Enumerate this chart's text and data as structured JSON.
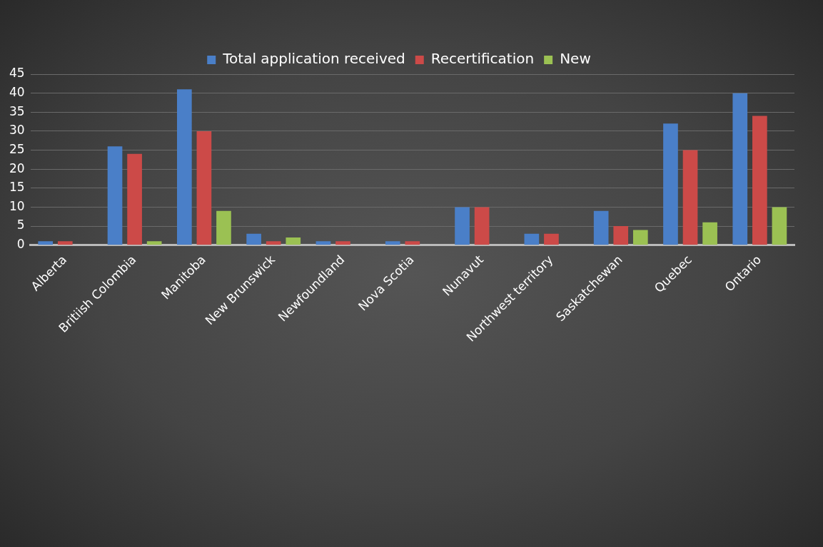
{
  "chart_data": {
    "type": "bar",
    "categories": [
      "Alberta",
      "Britiish Colombia",
      "Manitoba",
      "New Brunswick",
      "Newfoundland",
      "Nova Scotia",
      "Nunavut",
      "Northwest territory",
      "Saskatchewan",
      "Quebec",
      "Ontario"
    ],
    "series": [
      {
        "name": "Total application received",
        "color": "#4a7fc8",
        "values": [
          1,
          26,
          41,
          3,
          1,
          1,
          10,
          3,
          9,
          32,
          40
        ]
      },
      {
        "name": "Recertification",
        "color": "#cc4a48",
        "values": [
          1,
          24,
          30,
          1,
          1,
          1,
          10,
          3,
          5,
          25,
          34
        ]
      },
      {
        "name": "New",
        "color": "#9bc153",
        "values": [
          0,
          1,
          9,
          2,
          0,
          0,
          0,
          0,
          4,
          6,
          10
        ]
      }
    ],
    "ylim": [
      0,
      45
    ],
    "yticks": [
      0,
      5,
      10,
      15,
      20,
      25,
      30,
      35,
      40,
      45
    ],
    "grid": "y",
    "legend": "top"
  }
}
